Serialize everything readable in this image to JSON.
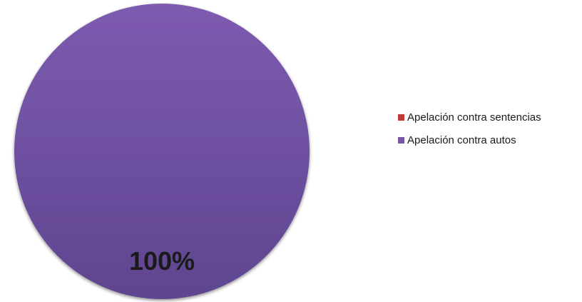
{
  "chart_data": {
    "type": "pie",
    "categories": [
      "Apelación contra sentencias",
      "Apelación contra autos"
    ],
    "values": [
      0,
      100
    ],
    "data_labels": [
      "",
      "100%"
    ],
    "colors": [
      "#c0393b",
      "#7a56a8"
    ],
    "legend_position": "right",
    "title": ""
  }
}
